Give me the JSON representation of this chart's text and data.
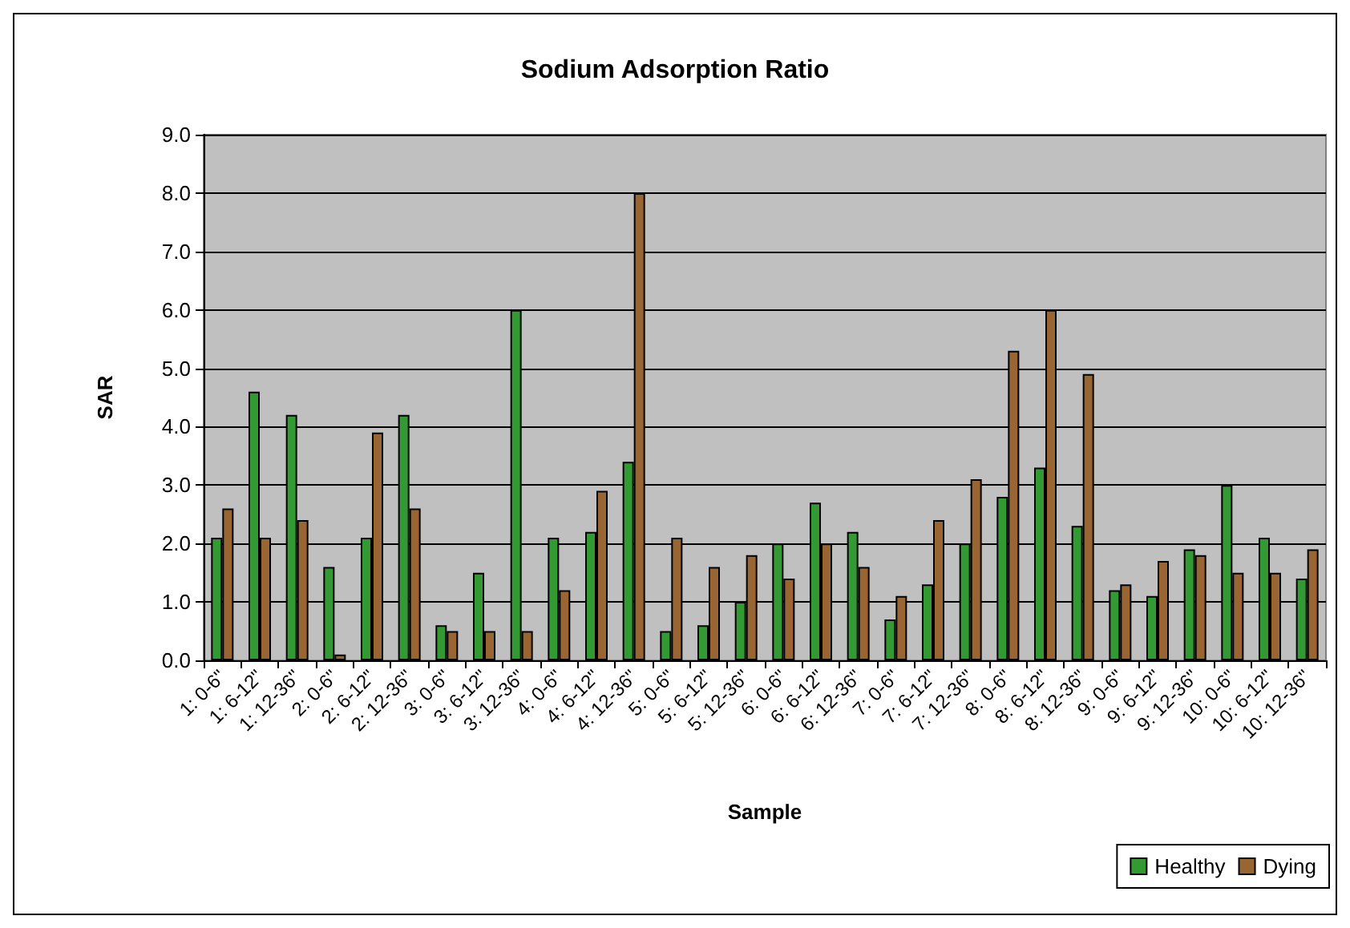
{
  "chart_data": {
    "type": "bar",
    "title": "Sodium Adsorption Ratio",
    "xlabel": "Sample",
    "ylabel": "SAR",
    "categories": [
      "1: 0-6\"",
      "1: 6-12\"",
      "1: 12-36\"",
      "2: 0-6\"",
      "2: 6-12\"",
      "2: 12-36\"",
      "3: 0-6\"",
      "3: 6-12\"",
      "3: 12-36\"",
      "4: 0-6\"",
      "4: 6-12\"",
      "4: 12-36\"",
      "5: 0-6\"",
      "5: 6-12\"",
      "5: 12-36\"",
      "6: 0-6\"",
      "6: 6-12\"",
      "6: 12-36\"",
      "7: 0-6\"",
      "7: 6-12\"",
      "7: 12-36\"",
      "8: 0-6\"",
      "8: 6-12\"",
      "8: 12-36\"",
      "9: 0-6\"",
      "9: 6-12\"",
      "9: 12-36\"",
      "10: 0-6\"",
      "10: 6-12\"",
      "10: 12-36\""
    ],
    "series": [
      {
        "name": "Healthy",
        "color": "#339933",
        "values": [
          2.1,
          4.6,
          4.2,
          1.6,
          2.1,
          4.2,
          0.6,
          1.5,
          6.0,
          2.1,
          2.2,
          3.4,
          0.5,
          0.6,
          1.0,
          2.0,
          2.7,
          2.2,
          0.7,
          1.3,
          2.0,
          2.8,
          3.3,
          2.3,
          1.2,
          1.1,
          1.9,
          3.0,
          2.1,
          1.4
        ]
      },
      {
        "name": "Dying",
        "color": "#996633",
        "values": [
          2.6,
          2.1,
          2.4,
          0.1,
          3.9,
          2.6,
          0.5,
          0.5,
          0.5,
          1.2,
          2.9,
          8.0,
          2.1,
          1.6,
          1.8,
          1.4,
          2.0,
          1.6,
          1.1,
          2.4,
          3.1,
          5.3,
          6.0,
          4.9,
          1.3,
          1.7,
          1.8,
          1.5,
          1.5,
          1.9
        ]
      }
    ],
    "ylim": [
      0,
      9
    ],
    "yticks": [
      {
        "value": 0,
        "label": "0.0"
      },
      {
        "value": 1,
        "label": "1.0"
      },
      {
        "value": 2,
        "label": "2.0"
      },
      {
        "value": 3,
        "label": "3.0"
      },
      {
        "value": 4,
        "label": "4.0"
      },
      {
        "value": 5,
        "label": "5.0"
      },
      {
        "value": 6,
        "label": "6.0"
      },
      {
        "value": 7,
        "label": "7.0"
      },
      {
        "value": 8,
        "label": "8.0"
      },
      {
        "value": 9,
        "label": "9.0"
      }
    ],
    "grid": "y",
    "legend": "bottom right"
  }
}
